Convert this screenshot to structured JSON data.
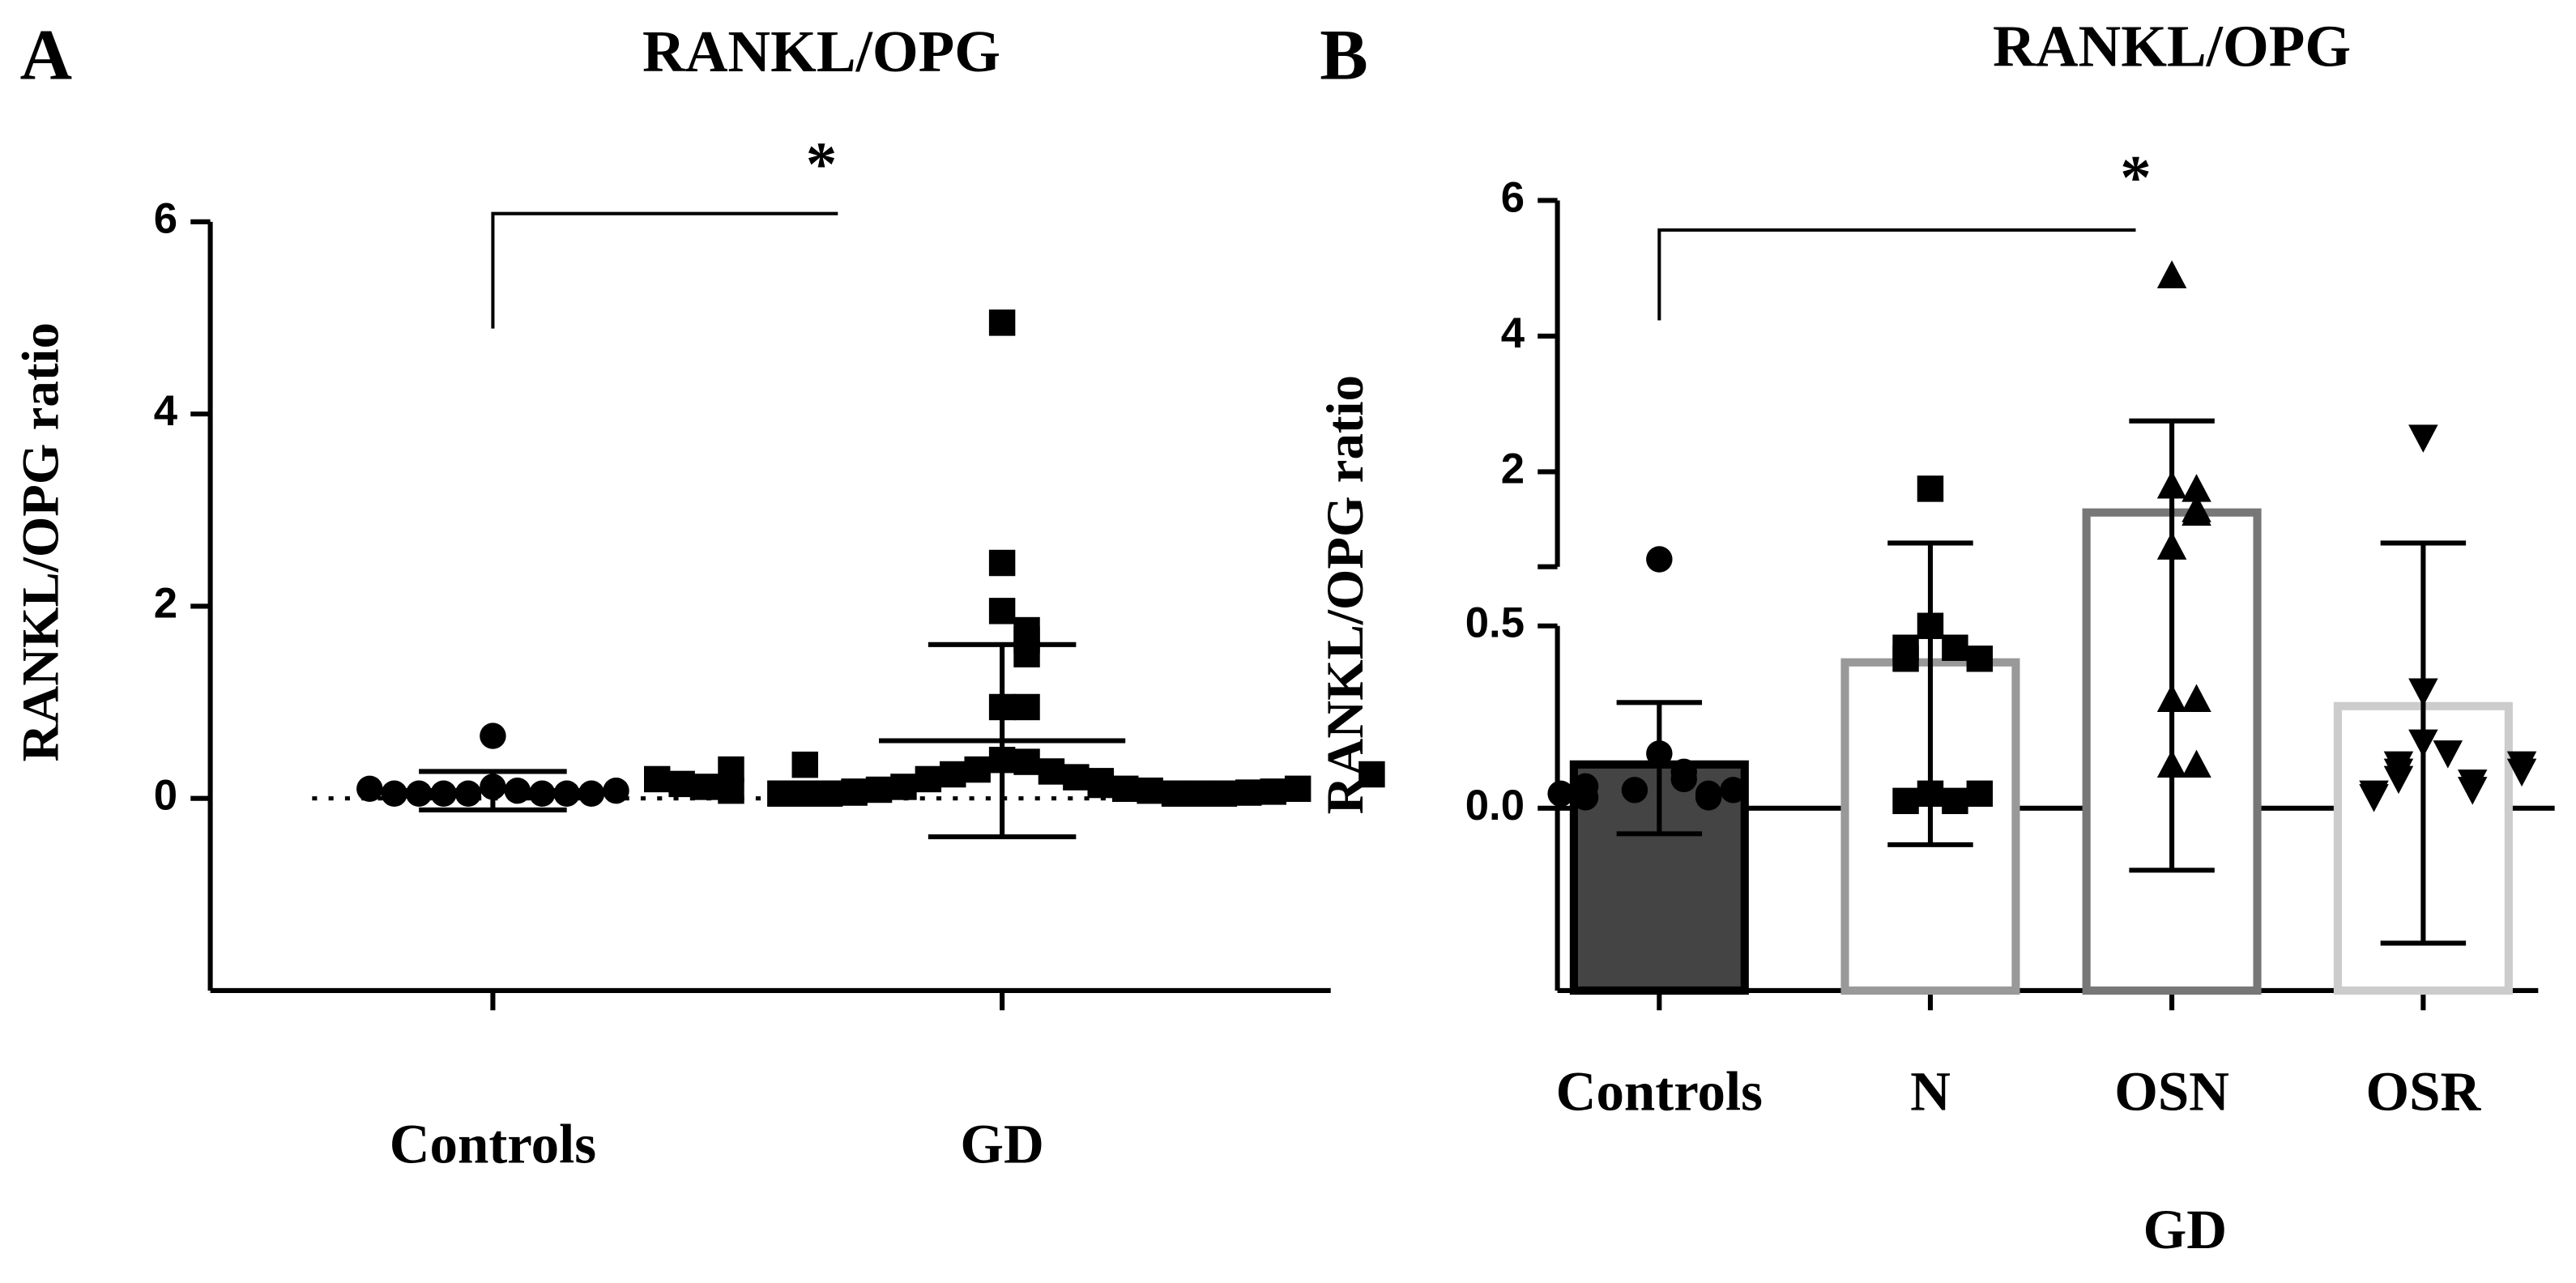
{
  "chart_data": [
    {
      "type": "dot",
      "panel_label": "A",
      "title": "RANKL/OPG",
      "y_label": "RANKL/OPG ratio",
      "categories": [
        "Controls",
        "GD"
      ],
      "groups": [
        {
          "marker": "circle",
          "color": "#000000",
          "values": [
            0.65,
            0.12,
            0.08,
            0.05,
            0.05,
            0.05,
            0.05,
            0.05,
            0.05,
            0.05,
            0.08,
            0.1
          ]
        },
        {
          "marker": "square",
          "color": "#000000",
          "values": [
            4.95,
            2.45,
            1.95,
            1.75,
            1.65,
            1.5,
            0.95,
            0.95,
            0.4,
            0.38,
            0.3,
            0.28,
            0.25,
            0.22,
            0.2,
            0.18,
            0.16,
            0.14,
            0.12,
            0.1,
            0.09,
            0.08,
            0.07,
            0.06,
            0.05,
            0.05,
            0.05,
            0.05,
            0.05,
            0.05,
            0.06,
            0.07,
            0.08,
            0.1,
            0.12,
            0.15,
            0.2,
            0.25,
            0.3,
            0.35
          ]
        }
      ],
      "means": [
        0.08,
        0.6
      ],
      "error_bars": [
        [
          -0.12,
          0.28
        ],
        [
          -0.4,
          1.6
        ]
      ],
      "significance": "*",
      "ylim": [
        -2,
        6
      ],
      "yticks": [
        0,
        2,
        4,
        6
      ],
      "zero_line": "dotted"
    },
    {
      "type": "bar",
      "panel_label": "B",
      "title": "RANKL/OPG",
      "y_label": "RANKL/OPG ratio",
      "categories": [
        "Controls",
        "N",
        "OSN",
        "OSR"
      ],
      "group_label": "GD",
      "groups": [
        {
          "marker": "circle",
          "color": "#000000",
          "values": [
            0.71,
            0.15,
            0.1,
            0.08,
            0.05,
            0.04,
            0.03,
            0.05,
            0.06,
            0.03,
            0.04
          ]
        },
        {
          "marker": "square",
          "color": "#000000",
          "values": [
            1.75,
            0.5,
            0.44,
            0.44,
            0.41,
            0.41,
            0.04,
            0.02,
            0.02,
            0.04
          ]
        },
        {
          "marker": "triangle-up",
          "color": "#000000",
          "values": [
            4.9,
            1.8,
            1.75,
            1.45,
            1.4,
            0.9,
            0.3,
            0.3,
            0.12,
            0.12
          ]
        },
        {
          "marker": "triangle-down",
          "color": "#000000",
          "values": [
            2.5,
            0.32,
            0.18,
            0.15,
            0.12,
            0.1,
            0.08,
            0.07,
            0.05,
            0.04,
            0.03,
            0.1,
            0.12
          ]
        }
      ],
      "means": [
        0.12,
        0.4,
        1.4,
        0.28
      ],
      "bar_fill": [
        "#444444",
        "#ffffff",
        "#ffffff",
        "#ffffff"
      ],
      "bar_stroke": [
        "#000000",
        "#999999",
        "#777777",
        "#cccccc"
      ],
      "error_bars": [
        [
          -0.07,
          0.29
        ],
        [
          -0.1,
          0.95
        ],
        [
          -0.17,
          2.75
        ],
        [
          -0.37,
          0.95
        ]
      ],
      "significance": "*",
      "ylim_lower": [
        -0.5,
        0.5
      ],
      "ylim_upper": [
        0.6,
        6
      ],
      "yticks": [
        {
          "value": 0,
          "label": "0.0"
        },
        {
          "value": 0.5,
          "label": "0.5"
        },
        2,
        4,
        6
      ],
      "zero_line": "solid"
    }
  ]
}
